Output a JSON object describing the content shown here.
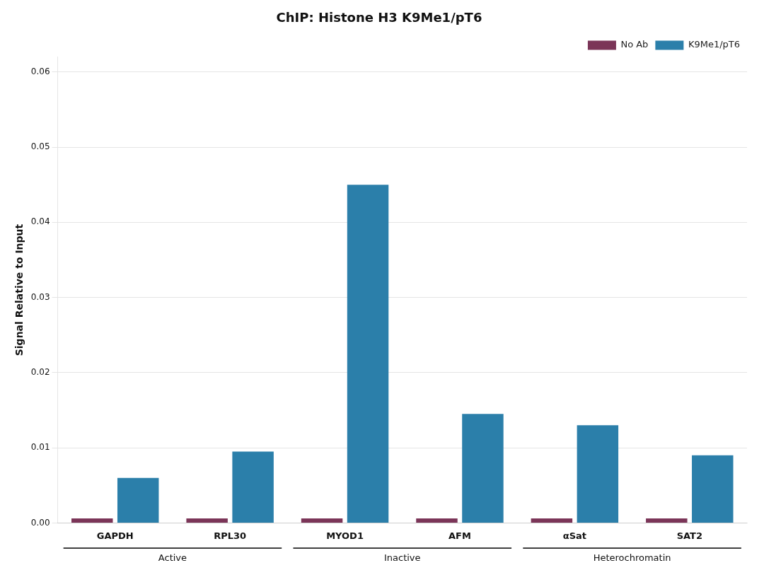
{
  "chart_data": {
    "type": "bar",
    "title": "ChIP: Histone H3 K9Me1/pT6",
    "ylabel": "Signal Relative to Input",
    "categories": [
      "GAPDH",
      "RPL30",
      "MYOD1",
      "AFM",
      "αSat",
      "SAT2"
    ],
    "series": [
      {
        "name": "No Ab",
        "color": "#7b3558",
        "values": [
          0.0006,
          0.0006,
          0.0006,
          0.0006,
          0.0006,
          0.0006
        ]
      },
      {
        "name": "K9Me1/pT6",
        "color": "#2b7faa",
        "values": [
          0.006,
          0.0095,
          0.045,
          0.0145,
          0.013,
          0.009
        ]
      }
    ],
    "groups": [
      {
        "name": "Active",
        "categories": [
          "GAPDH",
          "RPL30"
        ]
      },
      {
        "name": "Inactive",
        "categories": [
          "MYOD1",
          "AFM"
        ]
      },
      {
        "name": "Heterochromatin",
        "categories": [
          "αSat",
          "SAT2"
        ]
      }
    ],
    "ylim": [
      0,
      0.062
    ],
    "yticks": [
      {
        "value": 0,
        "label": "0.00"
      },
      0.01,
      0.02,
      0.03,
      0.04,
      0.05,
      0.06
    ],
    "grid": true,
    "legend": "upper right"
  }
}
